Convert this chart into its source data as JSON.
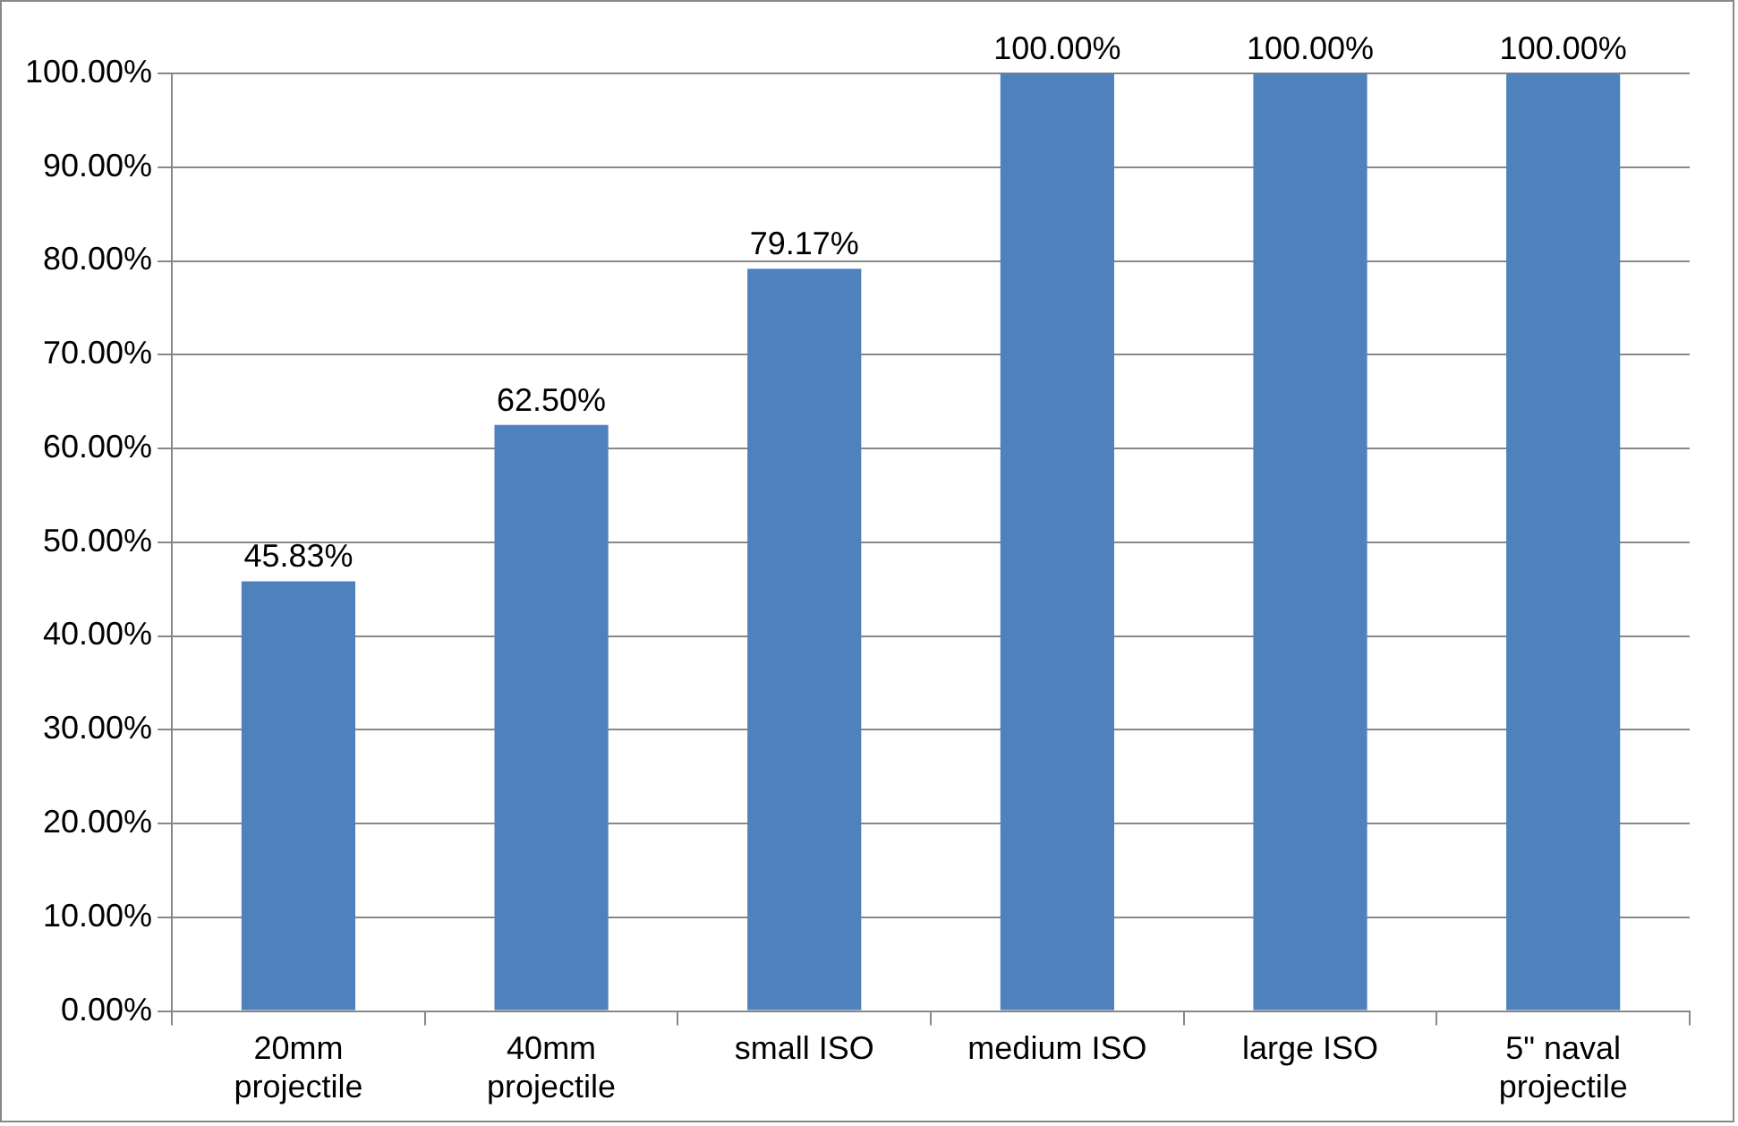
{
  "chart_data": {
    "type": "bar",
    "categories": [
      "20mm projectile",
      "40mm projectile",
      "small ISO",
      "medium ISO",
      "large ISO",
      "5\" naval projectile"
    ],
    "values": [
      45.83,
      62.5,
      79.17,
      100,
      100,
      100
    ],
    "value_labels": [
      "45.83%",
      "62.50%",
      "79.17%",
      "100.00%",
      "100.00%",
      "100.00%"
    ],
    "color": "#4f81bd",
    "ylim": [
      0,
      100
    ],
    "yticks": [
      {
        "value": 0,
        "label": "0.00%"
      },
      {
        "value": 10,
        "label": "10.00%"
      },
      {
        "value": 20,
        "label": "20.00%"
      },
      {
        "value": 30,
        "label": "30.00%"
      },
      {
        "value": 40,
        "label": "40.00%"
      },
      {
        "value": 50,
        "label": "50.00%"
      },
      {
        "value": 60,
        "label": "60.00%"
      },
      {
        "value": 70,
        "label": "70.00%"
      },
      {
        "value": 80,
        "label": "80.00%"
      },
      {
        "value": 90,
        "label": "90.00%"
      },
      {
        "value": 100,
        "label": "100.00%"
      }
    ],
    "grid": "y"
  }
}
